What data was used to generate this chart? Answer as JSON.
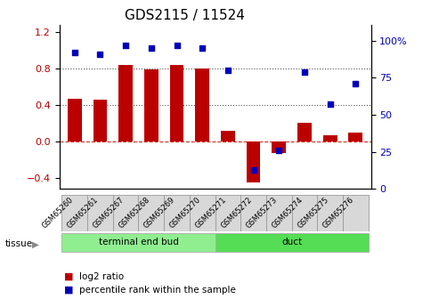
{
  "title": "GDS2115 / 11524",
  "samples": [
    "GSM65260",
    "GSM65261",
    "GSM65267",
    "GSM65268",
    "GSM65269",
    "GSM65270",
    "GSM65271",
    "GSM65272",
    "GSM65273",
    "GSM65274",
    "GSM65275",
    "GSM65276"
  ],
  "log2_ratio": [
    0.47,
    0.46,
    0.84,
    0.79,
    0.84,
    0.8,
    0.12,
    -0.45,
    -0.13,
    0.2,
    0.07,
    0.1
  ],
  "percentile_rank": [
    92,
    91,
    97,
    95,
    97,
    95,
    80,
    13,
    26,
    79,
    57,
    71
  ],
  "tissue_groups": [
    {
      "label": "terminal end bud",
      "indices": [
        0,
        1,
        2,
        3,
        4,
        5
      ],
      "color": "#90ee90"
    },
    {
      "label": "duct",
      "indices": [
        6,
        7,
        8,
        9,
        10,
        11
      ],
      "color": "#55dd55"
    }
  ],
  "bar_color": "#bb0000",
  "dot_color": "#0000bb",
  "left_ylim": [
    -0.52,
    1.28
  ],
  "right_ylim": [
    0,
    110.93
  ],
  "left_yticks": [
    -0.4,
    0.0,
    0.4,
    0.8,
    1.2
  ],
  "right_yticks": [
    0,
    25,
    50,
    75,
    100
  ],
  "right_yticklabels": [
    "0",
    "25",
    "50",
    "75",
    "100%"
  ],
  "hlines_dotted": [
    0.4,
    0.8
  ],
  "zero_line_color": "#cc3322",
  "dotted_line_color": "#555555",
  "bar_width": 0.55,
  "tissue_label": "tissue",
  "legend_log2": "log2 ratio",
  "legend_pct": "percentile rank within the sample",
  "background_color": "#ffffff",
  "title_fontsize": 11,
  "tick_fontsize": 8,
  "label_fontsize": 7.5,
  "sample_box_color": "#d8d8d8",
  "sample_box_edge": "#999999"
}
